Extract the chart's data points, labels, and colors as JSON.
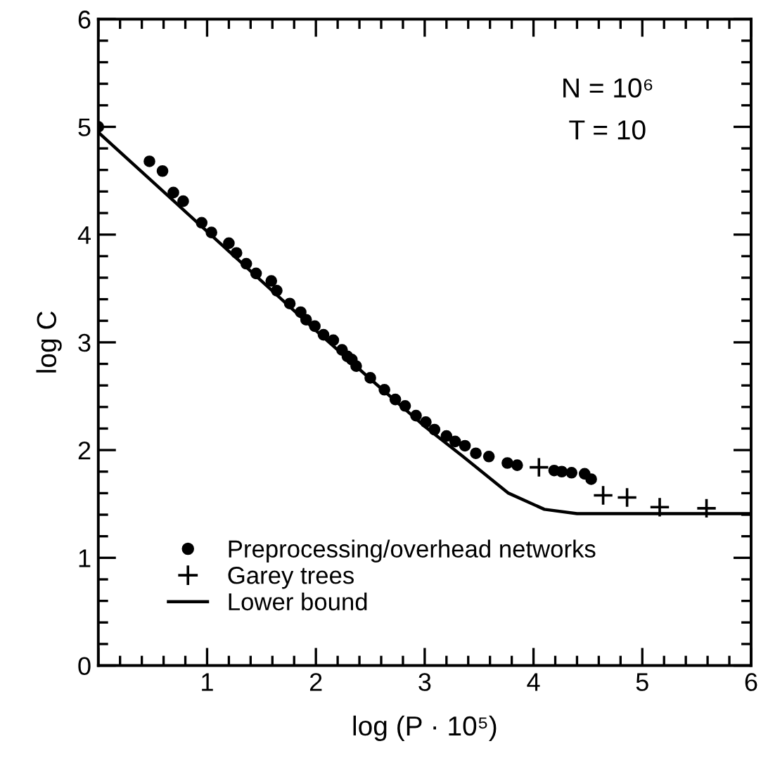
{
  "chart_data": {
    "type": "scatter",
    "xlabel": "log (P · 10⁵)",
    "ylabel": "log C",
    "annotations": [
      "N = 10⁶",
      "T = 10"
    ],
    "xlim": [
      0,
      6
    ],
    "ylim": [
      0,
      6
    ],
    "xticks": [
      {
        "value": 0,
        "label": null
      },
      1,
      2,
      3,
      4,
      5,
      6
    ],
    "yticks": [
      0,
      1,
      2,
      3,
      4,
      5,
      6
    ],
    "grid": false,
    "legend": "bottom left",
    "series": [
      {
        "name": "Preprocessing/overhead networks",
        "marker": "circle",
        "color": "#000000",
        "x": [
          0,
          0.47,
          0.59,
          0.69,
          0.78,
          0.95,
          1.04,
          1.2,
          1.27,
          1.36,
          1.45,
          1.59,
          1.64,
          1.76,
          1.86,
          1.91,
          1.99,
          2.07,
          2.16,
          2.24,
          2.29,
          2.33,
          2.37,
          2.5,
          2.63,
          2.73,
          2.82,
          2.92,
          3.01,
          3.09,
          3.2,
          3.28,
          3.37,
          3.47,
          3.59,
          3.76,
          3.85,
          4.19,
          4.26,
          4.35,
          4.47,
          4.53
        ],
        "values": [
          5.0,
          4.68,
          4.59,
          4.39,
          4.31,
          4.11,
          4.02,
          3.92,
          3.83,
          3.73,
          3.64,
          3.57,
          3.48,
          3.36,
          3.28,
          3.21,
          3.15,
          3.07,
          3.02,
          2.93,
          2.87,
          2.84,
          2.78,
          2.67,
          2.56,
          2.47,
          2.41,
          2.32,
          2.26,
          2.19,
          2.13,
          2.08,
          2.04,
          1.97,
          1.94,
          1.88,
          1.86,
          1.81,
          1.8,
          1.79,
          1.78,
          1.73
        ]
      },
      {
        "name": "Garey trees",
        "marker": "cross",
        "color": "#000000",
        "x": [
          4.05,
          4.64,
          4.86,
          5.16,
          5.59
        ],
        "values": [
          1.84,
          1.58,
          1.56,
          1.47,
          1.46
        ]
      },
      {
        "name": "Lower bound",
        "type": "line",
        "marker": "none",
        "line_style": "solid",
        "color": "#000000",
        "x": [
          0,
          1,
          2,
          2.5,
          3,
          3.34,
          3.77,
          4.1,
          4.4,
          6
        ],
        "values": [
          4.95,
          4.03,
          3.11,
          2.66,
          2.22,
          1.95,
          1.6,
          1.45,
          1.41,
          1.41
        ]
      }
    ]
  }
}
